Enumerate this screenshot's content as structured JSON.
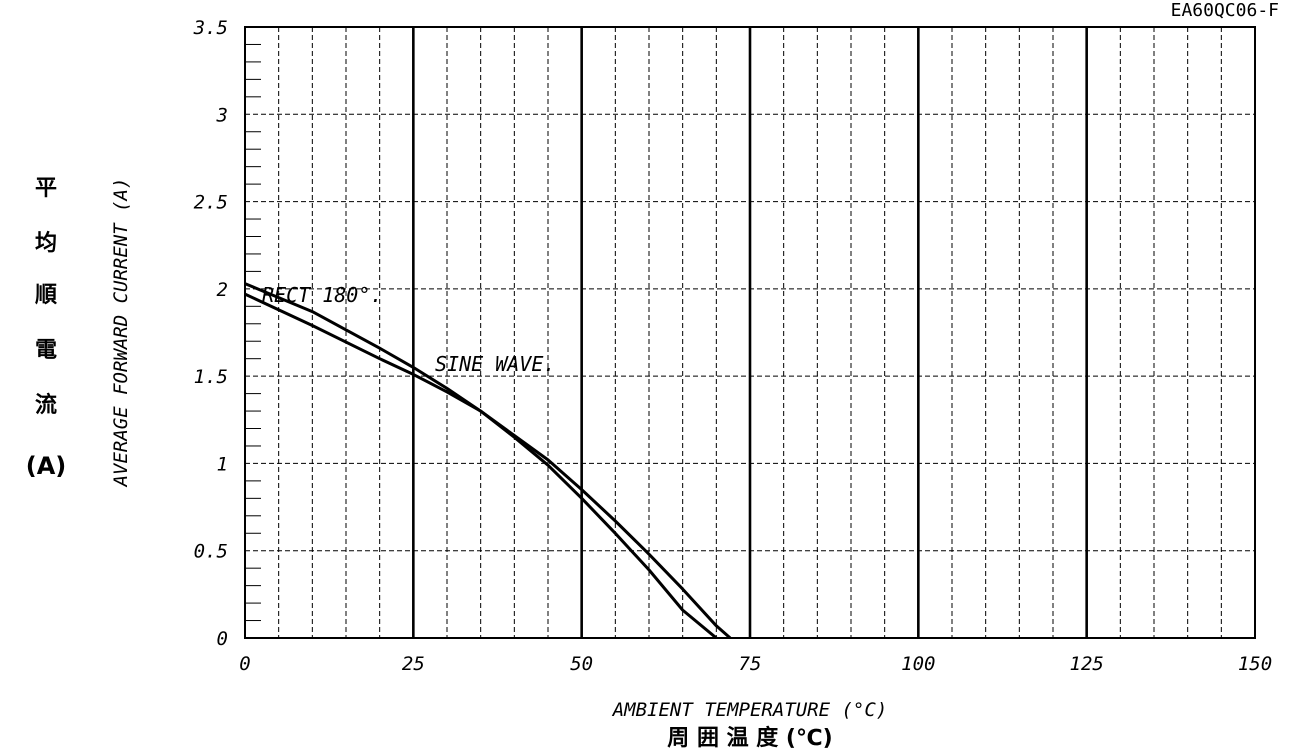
{
  "chart_data": {
    "type": "line",
    "part_number": "EA60QC06-F",
    "xlabel": "AMBIENT TEMPERATURE (°C)",
    "xlabel_jp": "周 囲 温 度 (℃)",
    "ylabel": "AVERAGE FORWARD CURRENT (A)",
    "ylabel_jp": [
      "平",
      "均",
      "順",
      "電",
      "流",
      "(A)"
    ],
    "xlim": [
      0,
      150
    ],
    "ylim": [
      0,
      3.5
    ],
    "x_ticks": [
      0,
      25,
      50,
      75,
      100,
      125,
      150
    ],
    "x_tick_labels": [
      "0",
      "25",
      "50",
      "75",
      "100",
      "125",
      "150"
    ],
    "y_ticks": [
      0,
      0.5,
      1,
      1.5,
      2,
      2.5,
      3,
      3.5
    ],
    "y_tick_labels": [
      "0",
      "0.5",
      "1",
      "1.5",
      "2",
      "2.5",
      "3",
      "3.5"
    ],
    "grid": true,
    "series": [
      {
        "name": "RECT 180°.",
        "x": [
          0,
          10,
          20,
          25,
          30,
          35,
          40,
          45,
          50,
          55,
          60,
          65,
          70,
          75,
          80
        ],
        "y": [
          2.03,
          1.87,
          1.66,
          1.55,
          1.43,
          1.3,
          1.15,
          0.99,
          0.8,
          0.6,
          0.39,
          0.16,
          0.0,
          null,
          null
        ]
      },
      {
        "name": "SINE WAVE.",
        "x": [
          0,
          10,
          20,
          25,
          30,
          35,
          40,
          45,
          50,
          55,
          60,
          65,
          70,
          75,
          80
        ],
        "y": [
          1.97,
          1.79,
          1.6,
          1.51,
          1.41,
          1.3,
          1.16,
          1.02,
          0.85,
          0.67,
          0.48,
          0.28,
          0.07,
          -0.1,
          null
        ]
      }
    ]
  }
}
